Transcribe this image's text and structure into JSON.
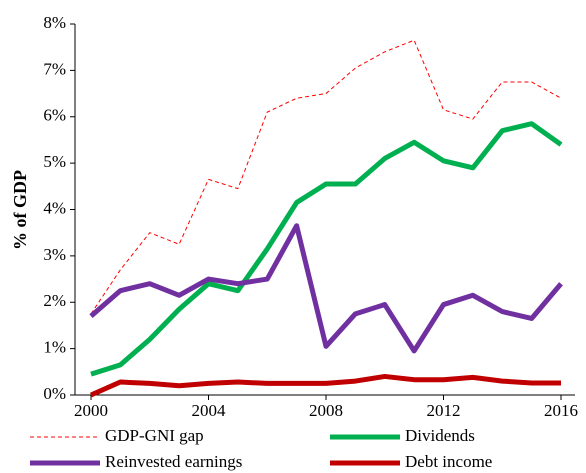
{
  "chart_data": {
    "type": "line",
    "y_label": "% of GDP",
    "x": [
      2000,
      2001,
      2002,
      2003,
      2004,
      2005,
      2006,
      2007,
      2008,
      2009,
      2010,
      2011,
      2012,
      2013,
      2014,
      2015,
      2016
    ],
    "series": [
      {
        "name": "GDP-GNI gap",
        "color": "#ff0000",
        "line_style": "dashed",
        "line_width": 1,
        "values": [
          1.75,
          2.7,
          3.5,
          3.25,
          4.65,
          4.45,
          6.1,
          6.4,
          6.5,
          7.05,
          7.4,
          7.65,
          6.15,
          5.95,
          6.75,
          6.75,
          6.4
        ]
      },
      {
        "name": "Dividends",
        "color": "#00b050",
        "line_style": "solid",
        "line_width": 5,
        "values": [
          0.45,
          0.65,
          1.2,
          1.85,
          2.4,
          2.25,
          3.15,
          4.15,
          4.55,
          4.55,
          5.1,
          5.45,
          5.05,
          4.9,
          5.7,
          5.85,
          5.4
        ]
      },
      {
        "name": "Reinvested earnings",
        "color": "#7030a0",
        "line_style": "solid",
        "line_width": 5,
        "values": [
          1.7,
          2.25,
          2.4,
          2.15,
          2.5,
          2.4,
          2.5,
          3.65,
          1.05,
          1.75,
          1.95,
          0.95,
          1.95,
          2.15,
          1.8,
          1.65,
          2.4
        ]
      },
      {
        "name": "Debt income",
        "color": "#c00000",
        "line_style": "solid",
        "line_width": 5,
        "values": [
          0.0,
          0.28,
          0.25,
          0.2,
          0.25,
          0.28,
          0.25,
          0.25,
          0.25,
          0.3,
          0.4,
          0.33,
          0.33,
          0.38,
          0.3,
          0.26,
          0.26
        ]
      }
    ],
    "xlim": [
      2000,
      2016
    ],
    "xticks": [
      2000,
      2004,
      2008,
      2012,
      2016
    ],
    "ylim": [
      0,
      8
    ],
    "yticks": [
      {
        "value": 0,
        "label": "0%"
      },
      {
        "value": 1,
        "label": "1%"
      },
      {
        "value": 2,
        "label": "2%"
      },
      {
        "value": 3,
        "label": "3%"
      },
      {
        "value": 4,
        "label": "4%"
      },
      {
        "value": 5,
        "label": "5%"
      },
      {
        "value": 6,
        "label": "6%"
      },
      {
        "value": 7,
        "label": "7%"
      },
      {
        "value": 8,
        "label": "8%"
      }
    ],
    "grid": false,
    "legend": "bottom"
  }
}
